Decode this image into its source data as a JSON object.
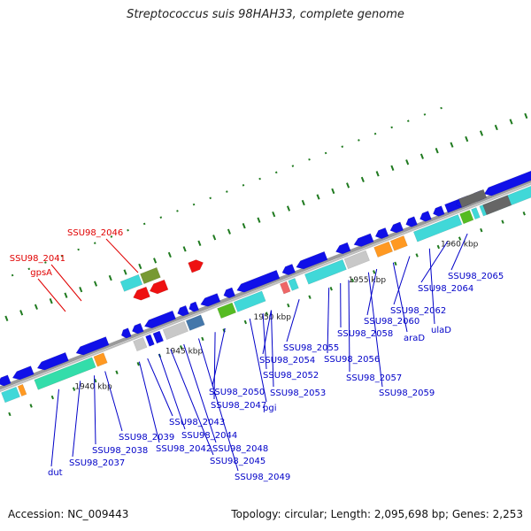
{
  "title": "Streptococcus suis 98HAH33, complete genome",
  "footer": {
    "accession": "Accession: NC_009443",
    "summary": "Topology: circular; Length: 2,095,698 bp; Genes: 2,253"
  },
  "colors": {
    "backbone": "#888888",
    "tick": "#1f7a1f",
    "label_blue": "#0000c8",
    "label_red": "#e00000",
    "gene_blue": "#1010e8",
    "gene_cyan": "#40d8d8",
    "gene_red": "#ee1111",
    "gene_green": "#55bb22",
    "gene_orange": "#ff9922",
    "gene_olive": "#779933",
    "gene_gray": "#c8c8c8",
    "gene_dark": "#666666",
    "gene_steel": "#4477aa",
    "gene_pink": "#ee6666",
    "gene_seafoam": "#33ddaa"
  },
  "scale_labels": [
    "1940 kbp",
    "1945 kbp",
    "1950 kbp",
    "1955 kbp",
    "1960 kbp"
  ],
  "labels_below": [
    "dut",
    "SSU98_2037",
    "SSU98_2038",
    "SSU98_2039",
    "SSU98_2042",
    "SSU98_2043",
    "SSU98_2044",
    "SSU98_2045",
    "SSU98_2048",
    "SSU98_2049",
    "SSU98_2047",
    "SSU98_2050",
    "pgi",
    "SSU98_2053",
    "SSU98_2052",
    "SSU98_2054",
    "SSU98_2055",
    "SSU98_2056",
    "SSU98_2057",
    "SSU98_2058",
    "SSU98_2059",
    "SSU98_2060",
    "araD",
    "SSU98_2062",
    "ulaD",
    "SSU98_2064",
    "SSU98_2065"
  ],
  "labels_above": [
    "SSU98_2046",
    "SSU98_2041",
    "gpsA"
  ]
}
